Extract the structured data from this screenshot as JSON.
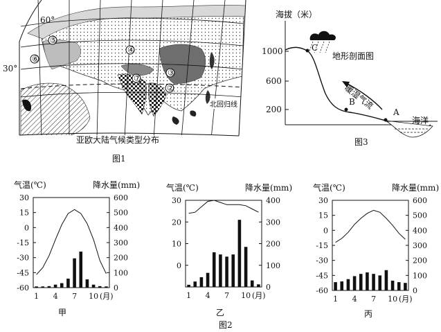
{
  "figure1": {
    "caption": "亚欧大陆气候类型分布",
    "label": "图1",
    "lat_labels": [
      "60°",
      "30°"
    ],
    "tropic_label": "北回归线",
    "region_markers": [
      "①",
      "②",
      "③",
      "④",
      "⑤",
      "⑥",
      "⑦"
    ]
  },
  "figure3": {
    "ylabel": "海拔（米）",
    "yticks": [
      "1000",
      "600",
      "200"
    ],
    "title": "地形剖面图",
    "wind_label": "暖湿气流",
    "points": [
      "A",
      "B",
      "C"
    ],
    "sea_label": "海洋",
    "label": "图3",
    "colors": {
      "line": "#111111",
      "cloud": "#111111"
    }
  },
  "figure2": {
    "label": "图2",
    "chart_data": [
      {
        "type": "bar",
        "name_label": "甲",
        "temp_axis_label": "气温(℃)",
        "precip_axis_label": "降水量(mm)",
        "temp_ticks": [
          "30",
          "15",
          "0",
          "-15",
          "-30",
          "-45",
          "-60"
        ],
        "precip_ticks": [
          "600",
          "500",
          "400",
          "300",
          "200",
          "100",
          "0"
        ],
        "temp_ylim": [
          -60,
          30
        ],
        "precip_ylim": [
          0,
          600
        ],
        "x_ticks": [
          "1",
          "4",
          "7",
          "10"
        ],
        "x_unit": "(月)",
        "months": [
          1,
          2,
          3,
          4,
          5,
          6,
          7,
          8,
          9,
          10,
          11,
          12
        ],
        "temperature": [
          -47,
          -40,
          -28,
          -12,
          3,
          14,
          18,
          14,
          4,
          -12,
          -33,
          -46
        ],
        "precipitation": [
          8,
          8,
          10,
          20,
          30,
          60,
          195,
          240,
          55,
          20,
          10,
          8
        ]
      },
      {
        "type": "bar",
        "name_label": "乙",
        "temp_axis_label": "气温(℃)",
        "precip_axis_label": "降水量(mm)",
        "temp_ticks": [
          "30",
          "20",
          "10",
          "0"
        ],
        "precip_ticks": [
          "400",
          "300",
          "200",
          "100",
          "0"
        ],
        "temp_ylim": [
          -10,
          30
        ],
        "precip_ylim": [
          0,
          400
        ],
        "x_ticks": [
          "1",
          "4",
          "7",
          "10"
        ],
        "x_unit": "(月)",
        "months": [
          1,
          2,
          3,
          4,
          5,
          6,
          7,
          8,
          9,
          10,
          11,
          12
        ],
        "temperature": [
          24,
          24.5,
          27,
          29.5,
          30,
          29,
          28,
          28,
          28,
          27.5,
          26,
          24.5
        ],
        "precipitation": [
          10,
          25,
          45,
          65,
          160,
          150,
          140,
          150,
          310,
          185,
          30,
          12
        ]
      },
      {
        "type": "bar",
        "name_label": "丙",
        "temp_axis_label": "气温(℃)",
        "precip_axis_label": "降水量(mm)",
        "temp_ticks": [
          "30",
          "15",
          "0",
          "-15",
          "-30",
          "-45",
          "-60"
        ],
        "precip_ticks": [
          "600",
          "500",
          "400",
          "300",
          "200",
          "100",
          "0"
        ],
        "temp_ylim": [
          -60,
          30
        ],
        "precip_ylim": [
          0,
          600
        ],
        "x_ticks": [
          "1",
          "4",
          "7",
          "10"
        ],
        "x_unit": "(月)",
        "months": [
          1,
          2,
          3,
          4,
          5,
          6,
          7,
          8,
          9,
          10,
          11,
          12
        ],
        "temperature": [
          -12,
          -8,
          -2,
          6,
          12,
          17,
          20,
          18,
          12,
          5,
          -3,
          -9
        ],
        "precipitation": [
          55,
          60,
          75,
          95,
          110,
          120,
          110,
          100,
          135,
          65,
          55,
          50
        ]
      }
    ]
  }
}
